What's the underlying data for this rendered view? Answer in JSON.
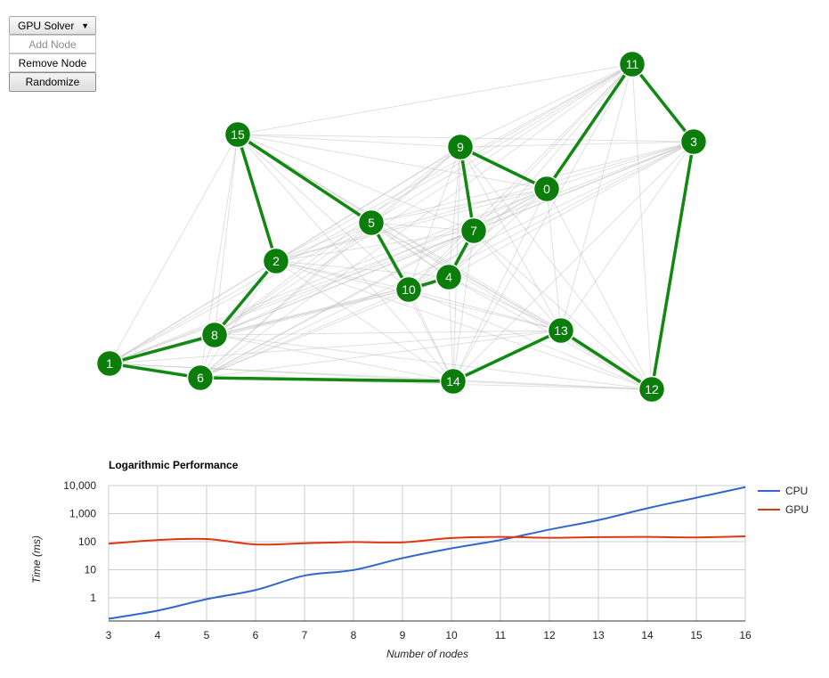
{
  "controls": {
    "solver_select": {
      "selected": "GPU Solver"
    },
    "add_node_label": "Add Node",
    "remove_node_label": "Remove Node",
    "randomize_label": "Randomize"
  },
  "colors": {
    "node_fill": "#0a7d0a",
    "node_stroke": "#ffffff",
    "tour_edge": "#118811",
    "graph_edge": "#bbbbbb",
    "cpu_series": "#3366cc",
    "gpu_series": "#dc3912",
    "grid": "#cccccc"
  },
  "graph": {
    "nodes": [
      "0",
      "1",
      "2",
      "3",
      "4",
      "5",
      "6",
      "7",
      "8",
      "9",
      "10",
      "11",
      "12",
      "13",
      "14",
      "15"
    ],
    "tour": [
      "1",
      "8",
      "2",
      "15",
      "5",
      "10",
      "4",
      "7",
      "9",
      "0",
      "11",
      "3",
      "12",
      "13",
      "14",
      "6",
      "1"
    ]
  },
  "chart_data": {
    "type": "line",
    "title": "Logarithmic Performance",
    "xlabel": "Number of nodes",
    "ylabel": "Time (ms)",
    "y_scale": "log",
    "grid": true,
    "legend_position": "right",
    "x": [
      3,
      4,
      5,
      6,
      7,
      8,
      9,
      10,
      11,
      12,
      13,
      14,
      15,
      16
    ],
    "xlim": [
      3,
      16
    ],
    "ylim": [
      0.15,
      10000
    ],
    "x_ticks": [
      "3",
      "4",
      "5",
      "6",
      "7",
      "8",
      "9",
      "10",
      "11",
      "12",
      "13",
      "14",
      "15",
      "16"
    ],
    "y_ticks": [
      {
        "value": 1,
        "label": "1"
      },
      {
        "value": 10,
        "label": "10"
      },
      {
        "value": 100,
        "label": "100"
      },
      {
        "value": 1000,
        "label": "1,000"
      },
      {
        "value": 10000,
        "label": "10,000"
      }
    ],
    "series": [
      {
        "name": "CPU",
        "values": [
          0.18,
          0.35,
          0.9,
          1.9,
          6.2,
          9.8,
          26,
          58,
          115,
          270,
          590,
          1550,
          3700,
          8800
        ]
      },
      {
        "name": "GPU",
        "values": [
          85,
          115,
          125,
          80,
          88,
          97,
          95,
          135,
          148,
          138,
          145,
          148,
          142,
          155
        ]
      }
    ]
  }
}
